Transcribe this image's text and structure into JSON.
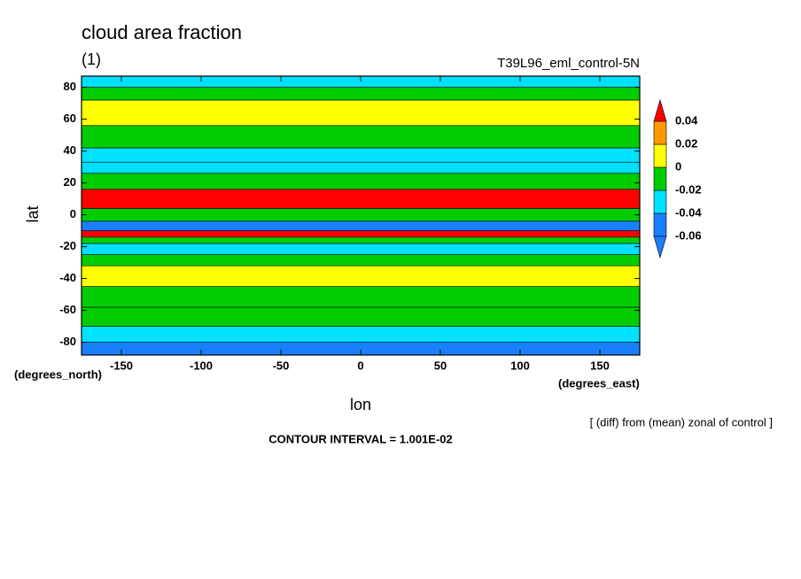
{
  "chart_data": {
    "type": "zonal-bands",
    "title": "cloud area fraction",
    "subtitle": "(1)",
    "dataset": "T39L96_eml_control-5N",
    "x_label": "lon",
    "y_label": "lat",
    "x_units": "(degrees_east)",
    "y_units": "(degrees_north)",
    "annotation": "[ (diff) from (mean) zonal of control ]",
    "contour_note": "CONTOUR INTERVAL = 1.001E-02",
    "xlim": [
      -175,
      175
    ],
    "xticks": [
      -150,
      -100,
      -50,
      0,
      50,
      100,
      150
    ],
    "ylim": [
      -88,
      87
    ],
    "yticks": [
      -80,
      -60,
      -40,
      -20,
      0,
      20,
      40,
      60,
      80
    ],
    "band_edges": [
      -88,
      -80,
      -70,
      -58,
      -45,
      -32,
      -25,
      -18,
      -14,
      -10,
      -4,
      4,
      16,
      26,
      33,
      42,
      56,
      72,
      80,
      87
    ],
    "band_values": [
      -0.05,
      -0.03,
      -0.01,
      -0.01,
      0.005,
      -0.01,
      -0.03,
      -0.01,
      0.05,
      -0.05,
      -0.01,
      0.05,
      -0.01,
      -0.03,
      -0.025,
      -0.01,
      0.005,
      -0.01,
      -0.03
    ],
    "levels": [
      -0.06,
      -0.04,
      -0.02,
      0,
      0.02,
      0.04
    ],
    "colors": [
      "#1a7fff",
      "#1a7fff",
      "#00e0ff",
      "#00cc00",
      "#ffff00",
      "#ff9900",
      "#ff0000"
    ]
  }
}
